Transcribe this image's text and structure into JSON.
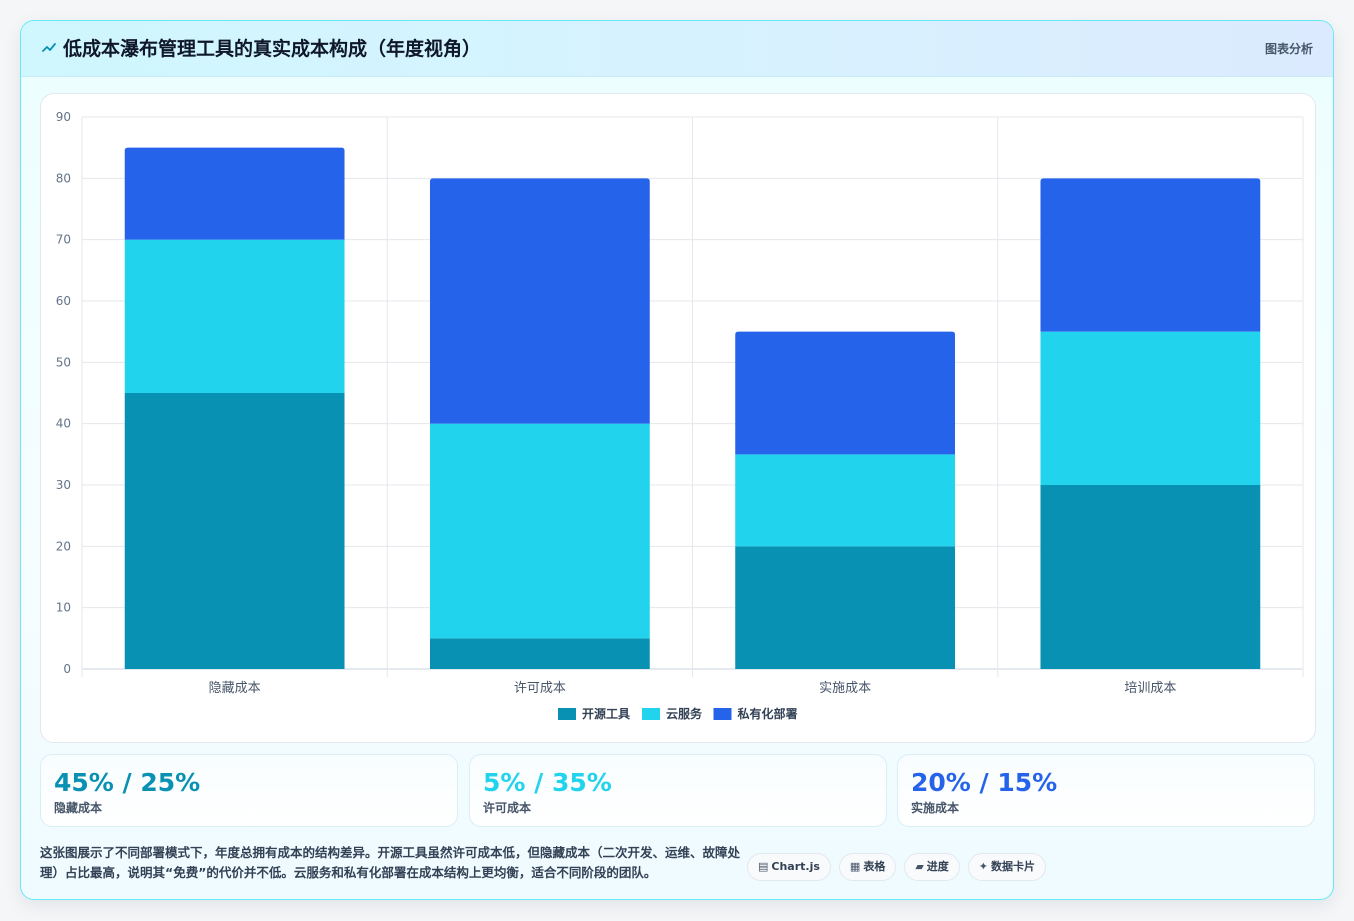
{
  "header": {
    "icon": "chart-line-icon",
    "title": "低成本瀑布管理工具的真实成本构成（年度视角）",
    "tag": "图表分析"
  },
  "chart_data": {
    "type": "bar",
    "stacked": true,
    "categories": [
      "隐藏成本",
      "许可成本",
      "实施成本",
      "培训成本"
    ],
    "series": [
      {
        "name": "开源工具",
        "values": [
          45,
          5,
          20,
          30
        ],
        "color": "#0891b2"
      },
      {
        "name": "云服务",
        "values": [
          25,
          35,
          15,
          25
        ],
        "color": "#22d3ee"
      },
      {
        "name": "私有化部署",
        "values": [
          15,
          40,
          20,
          25
        ],
        "color": "#2563eb"
      }
    ],
    "ylim": [
      0,
      90
    ],
    "yticks": [
      0,
      10,
      20,
      30,
      40,
      50,
      60,
      70,
      80,
      90
    ],
    "grid": true,
    "legend": "bottom"
  },
  "stats": [
    {
      "value": "45% / 25%",
      "label": "隐藏成本",
      "color": "#0891b2"
    },
    {
      "value": "5% / 35%",
      "label": "许可成本",
      "color": "#22d3ee"
    },
    {
      "value": "20% / 15%",
      "label": "实施成本",
      "color": "#2563eb"
    }
  ],
  "description": "这张图展示了不同部署模式下，年度总拥有成本的结构差异。开源工具虽然许可成本低，但隐藏成本（二次开发、运维、故障处理）占比最高，说明其“免费”的代价并不低。云服务和私有化部署在成本结构上更均衡，适合不同阶段的团队。",
  "chips": [
    {
      "icon": "▤",
      "icon_name": "chart-icon",
      "label": "Chart.js"
    },
    {
      "icon": "▦",
      "icon_name": "table-icon",
      "label": "表格"
    },
    {
      "icon": "▰",
      "icon_name": "progress-icon",
      "label": "进度"
    },
    {
      "icon": "✦",
      "icon_name": "data-card-icon",
      "label": "数据卡片"
    }
  ]
}
